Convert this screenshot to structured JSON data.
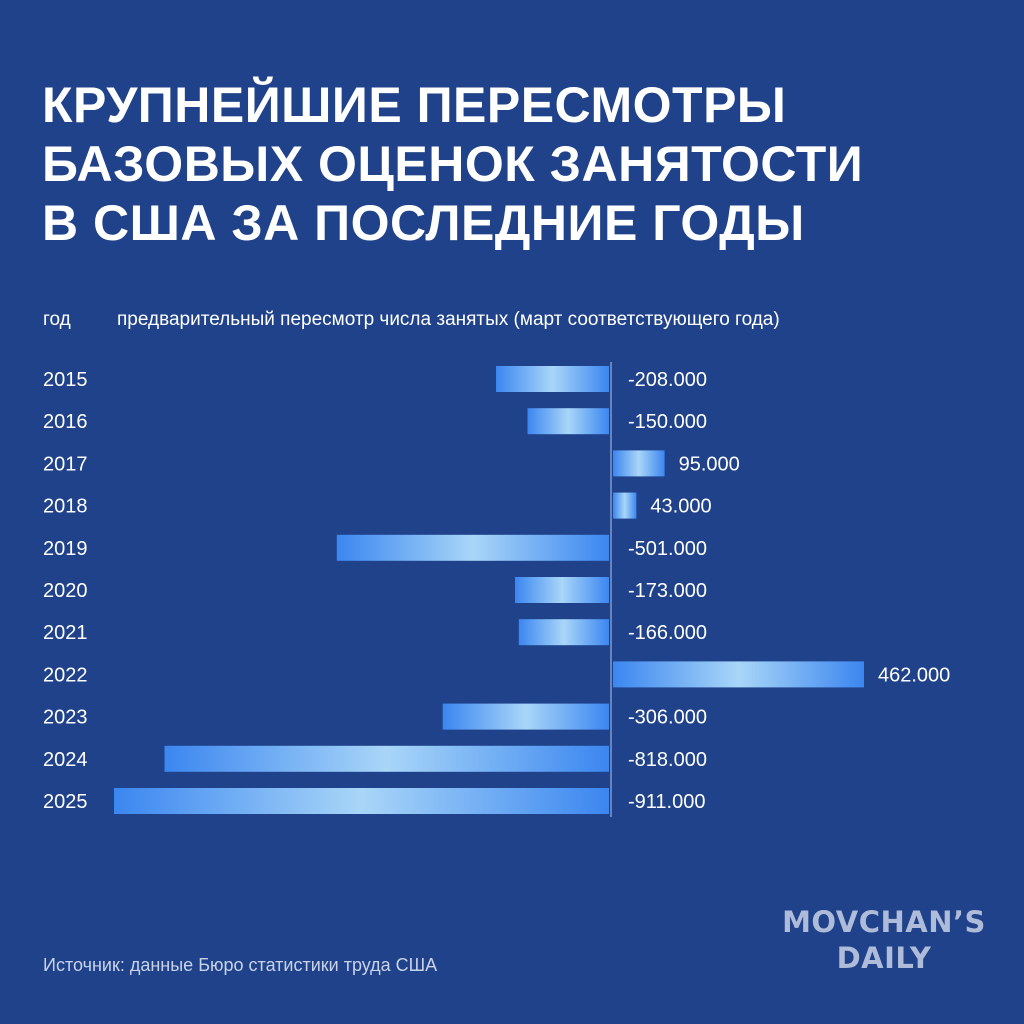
{
  "title_lines": [
    "КРУПНЕЙШИЕ ПЕРЕСМОТРЫ",
    "БАЗОВЫХ ОЦЕНОК ЗАНЯТОСТИ",
    "В США ЗА ПОСЛЕДНИЕ ГОДЫ"
  ],
  "headers": {
    "year": "год",
    "description": "предварительный пересмотр числа занятых (март соответствующего года)"
  },
  "source": "Источник: данные Бюро статистики труда США",
  "brand": {
    "line1": "MOVCHAN’S",
    "line2": "DAILY"
  },
  "colors": {
    "background": "#1f428a",
    "bar_edge": "#3b86f0",
    "bar_center": "#a9d6f8",
    "zero_line": "#a9c8f0",
    "text": "#ffffff"
  },
  "chart_data": {
    "type": "bar",
    "orientation": "horizontal",
    "categories": [
      "2015",
      "2016",
      "2017",
      "2018",
      "2019",
      "2020",
      "2021",
      "2022",
      "2023",
      "2024",
      "2025"
    ],
    "values": [
      -208000,
      -150000,
      95000,
      43000,
      -501000,
      -173000,
      -166000,
      462000,
      -306000,
      -818000,
      -911000
    ],
    "labels": [
      "-208.000",
      "-150.000",
      "95.000",
      "43.000",
      "-501.000",
      "-173.000",
      "-166.000",
      "462.000",
      "-306.000",
      "-818.000",
      "-911.000"
    ],
    "xlim": [
      -911000,
      462000
    ],
    "grid": false,
    "legend": "none"
  }
}
